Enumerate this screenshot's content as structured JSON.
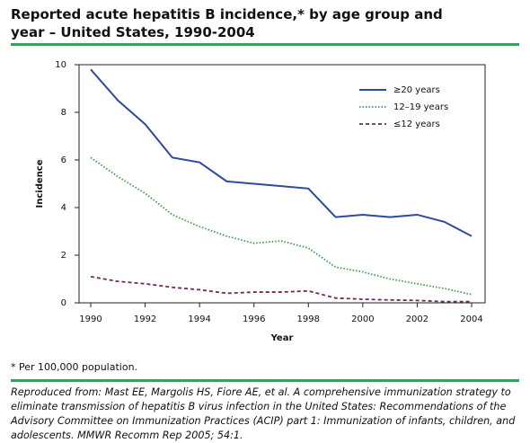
{
  "title": "Reported acute hepatitis B incidence,* by age group and year – United States, 1990-2004",
  "chart_data": {
    "type": "line",
    "x": [
      1990,
      1991,
      1992,
      1993,
      1994,
      1995,
      1996,
      1997,
      1998,
      1999,
      2000,
      2001,
      2002,
      2003,
      2004
    ],
    "series": [
      {
        "name": "≥20 years",
        "color": "#2d4a9c",
        "dash": "solid",
        "values": [
          9.8,
          8.5,
          7.5,
          6.1,
          5.9,
          5.1,
          5.0,
          4.9,
          4.8,
          3.6,
          3.7,
          3.6,
          3.7,
          3.4,
          2.8
        ]
      },
      {
        "name": "12–19 years",
        "color": "#3d9e4a",
        "dash": "dotted",
        "values": [
          6.1,
          5.3,
          4.6,
          3.7,
          3.2,
          2.8,
          2.5,
          2.6,
          2.3,
          1.5,
          1.3,
          1.0,
          0.8,
          0.6,
          0.35
        ]
      },
      {
        "name": "≤12 years",
        "color": "#6e2b5c",
        "dash": "dashed",
        "values": [
          1.1,
          0.9,
          0.8,
          0.65,
          0.55,
          0.4,
          0.45,
          0.45,
          0.5,
          0.2,
          0.15,
          0.12,
          0.1,
          0.05,
          0.05
        ]
      }
    ],
    "xlabel": "Year",
    "ylabel": "Incidence",
    "xlim": [
      1990,
      2004
    ],
    "ylim": [
      0,
      10
    ],
    "xticks": [
      1990,
      1992,
      1994,
      1996,
      1998,
      2000,
      2002,
      2004
    ],
    "yticks": [
      0,
      2,
      4,
      6,
      8,
      10
    ],
    "legend": "upper right"
  },
  "footnote": "* Per 100,000 population.",
  "citation": "Reproduced from: Mast EE, Margolis HS, Fiore AE, et al. A comprehensive immunization strategy to eliminate transmission of hepatitis B virus infection in the United States: Recommendations of the Advisory Committee on Immunization Practices (ACIP) part 1: Immunization of infants, children, and adolescents. MMWR Recomm Rep 2005; 54:1."
}
